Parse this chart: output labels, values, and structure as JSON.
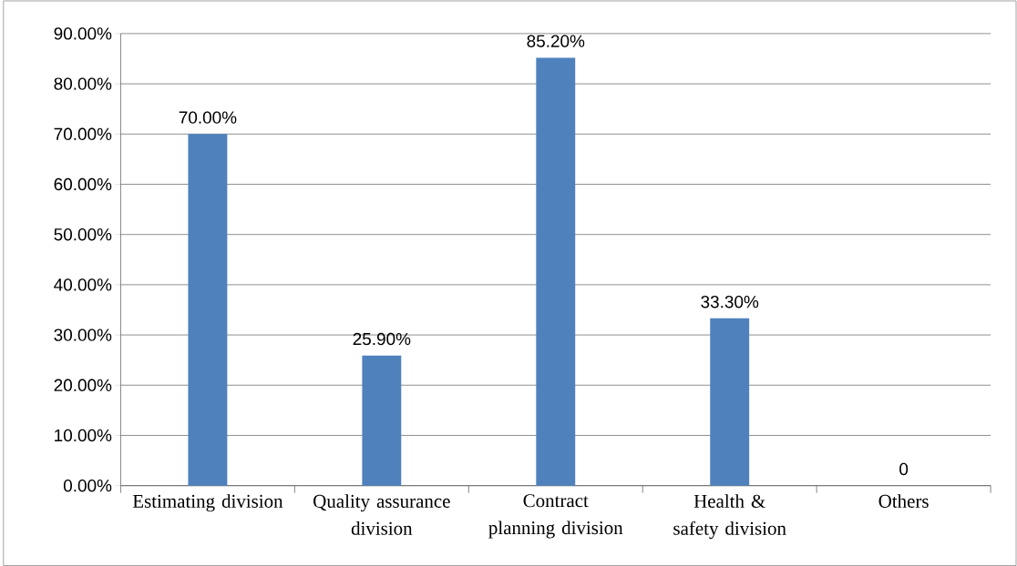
{
  "chart_data": {
    "type": "bar",
    "categories": [
      "Estimating division",
      "Quality assurance division",
      "Contract planning division",
      "Health & safety division",
      "Others"
    ],
    "values": [
      70,
      25.9,
      85.2,
      33.3,
      0
    ],
    "color": "#4f81bd",
    "value_labels": [
      "70.00%",
      "25.90%",
      "85.20%",
      "33.30%",
      "0"
    ],
    "ylim": [
      0,
      90
    ],
    "yticks": [
      {
        "value": 0,
        "label": "0.00%"
      },
      {
        "value": 10,
        "label": "10.00%"
      },
      {
        "value": 20,
        "label": "20.00%"
      },
      {
        "value": 30,
        "label": "30.00%"
      },
      {
        "value": 40,
        "label": "40.00%"
      },
      {
        "value": 50,
        "label": "50.00%"
      },
      {
        "value": 60,
        "label": "60.00%"
      },
      {
        "value": 70,
        "label": "70.00%"
      },
      {
        "value": 80,
        "label": "80.00%"
      },
      {
        "value": 90,
        "label": "90.00%"
      }
    ],
    "grid": "y"
  }
}
